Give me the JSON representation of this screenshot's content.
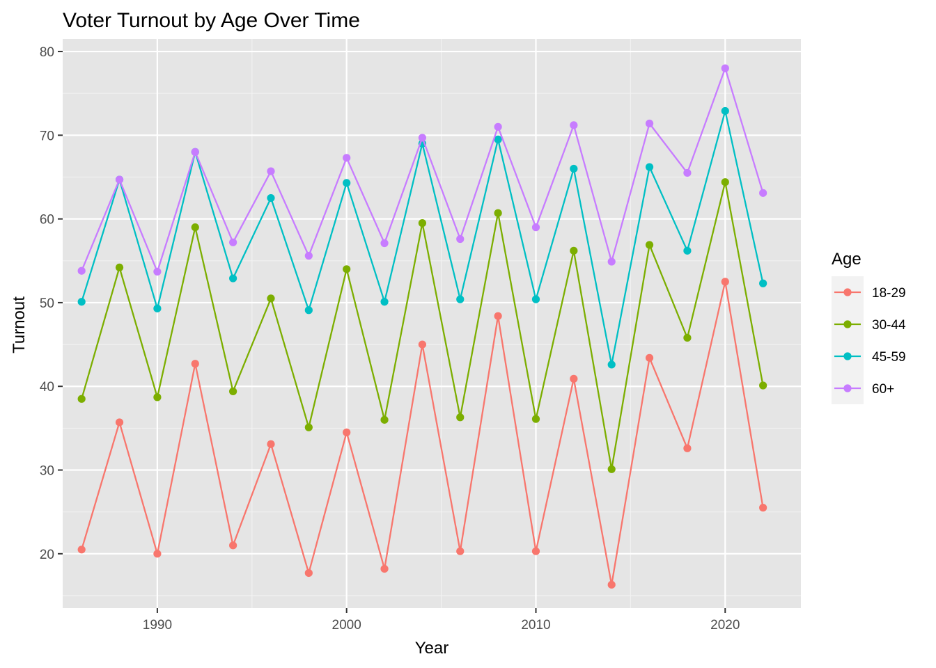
{
  "chart_data": {
    "type": "line",
    "title": "Voter Turnout by Age Over Time",
    "xlabel": "Year",
    "ylabel": "Turnout",
    "xlim": [
      1985,
      2024
    ],
    "ylim": [
      13.5,
      81.5
    ],
    "x_ticks": [
      1990,
      2000,
      2010,
      2020
    ],
    "y_ticks": [
      20,
      30,
      40,
      50,
      60,
      70,
      80
    ],
    "grid": true,
    "legend_title": "Age",
    "legend_position": "right",
    "x": [
      1986,
      1988,
      1990,
      1992,
      1994,
      1996,
      1998,
      2000,
      2002,
      2004,
      2006,
      2008,
      2010,
      2012,
      2014,
      2016,
      2018,
      2020,
      2022
    ],
    "series": [
      {
        "name": "18-29",
        "color": "#F8766D",
        "values": [
          20.5,
          35.7,
          20.0,
          42.7,
          21.0,
          33.1,
          17.7,
          34.5,
          18.2,
          45.0,
          20.3,
          48.4,
          20.3,
          40.9,
          16.3,
          43.4,
          32.6,
          52.5,
          25.5
        ]
      },
      {
        "name": "30-44",
        "color": "#7CAE00",
        "values": [
          38.5,
          54.2,
          38.7,
          59.0,
          39.4,
          50.5,
          35.1,
          54.0,
          36.0,
          59.5,
          36.3,
          60.7,
          36.1,
          56.2,
          30.1,
          56.9,
          45.8,
          64.4,
          40.1
        ]
      },
      {
        "name": "45-59",
        "color": "#00BFC4",
        "values": [
          50.1,
          64.7,
          49.3,
          68.0,
          52.9,
          62.5,
          49.1,
          64.3,
          50.1,
          69.0,
          50.4,
          69.5,
          50.4,
          66.0,
          42.6,
          66.2,
          56.2,
          72.9,
          52.3
        ]
      },
      {
        "name": "60+",
        "color": "#C77CFF",
        "values": [
          53.8,
          64.7,
          53.7,
          68.0,
          57.2,
          65.7,
          55.6,
          67.3,
          57.1,
          69.7,
          57.6,
          71.0,
          59.0,
          71.2,
          54.9,
          71.4,
          65.5,
          78.0,
          63.1
        ]
      }
    ]
  }
}
